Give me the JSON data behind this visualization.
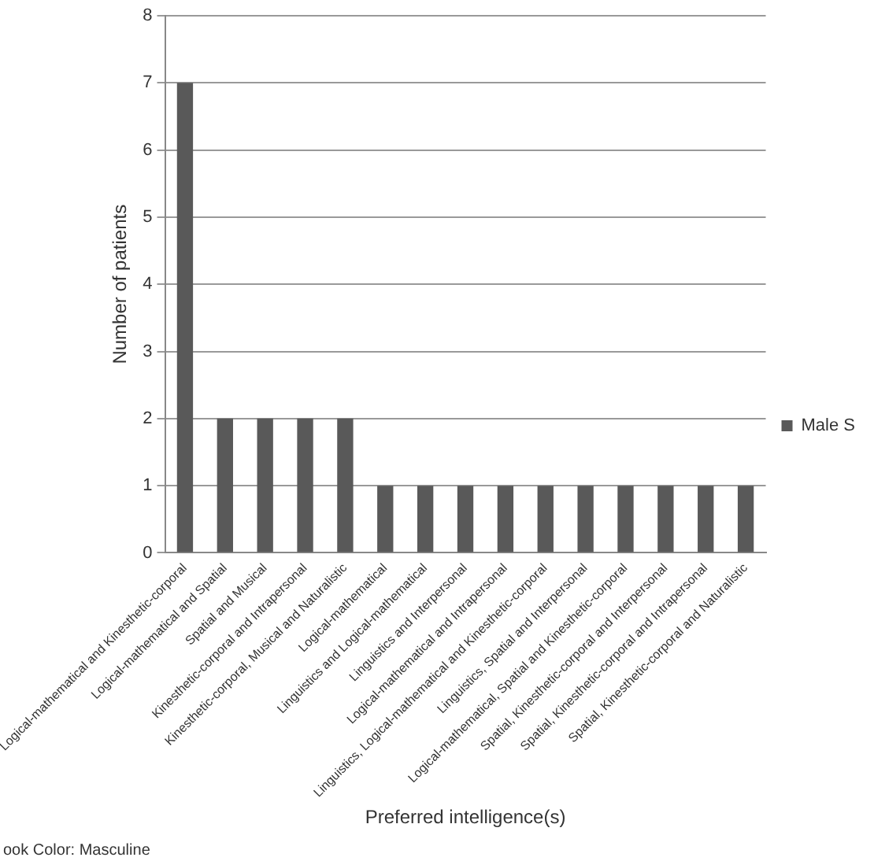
{
  "chart_data": {
    "type": "bar",
    "xlabel": "Preferred intelligence(s)",
    "ylabel": "Number of patients",
    "categories": [
      "Logical-mathematical and Kinesthetic-corporal",
      "Logical-mathematical and Spatial",
      "Spatial and Musical",
      "Kinesthetic-corporal and Intrapersonal",
      "Kinesthetic-corporal, Musical and Naturalistic",
      "Logical-mathematical",
      "Linguistics and Logical-mathematical",
      "Linguistics and Interpersonal",
      "Logical-mathematical and Intrapersonal",
      "Linguistics, Logical-mathematical and Kinesthetic-corporal",
      "Linguistics, Spatial and Interpersonal",
      "Logical-mathematical, Spatial and Kinesthetic-corporal",
      "Spatial, Kinesthetic-corporal and Interpersonal",
      "Spatial, Kinesthetic-corporal and Intrapersonal",
      "Spatial, Kinesthetic-corporal and Naturalistic"
    ],
    "series": [
      {
        "name": "Male S",
        "color": "#595959",
        "values": [
          7,
          2,
          2,
          2,
          2,
          1,
          1,
          1,
          1,
          1,
          1,
          1,
          1,
          1,
          1
        ]
      }
    ],
    "ylim": [
      0,
      8
    ],
    "yticks": [
      0,
      1,
      2,
      3,
      4,
      5,
      6,
      7,
      8
    ],
    "grid": "y",
    "legend": "right",
    "annotations": [
      "ook Color: Masculine"
    ]
  }
}
